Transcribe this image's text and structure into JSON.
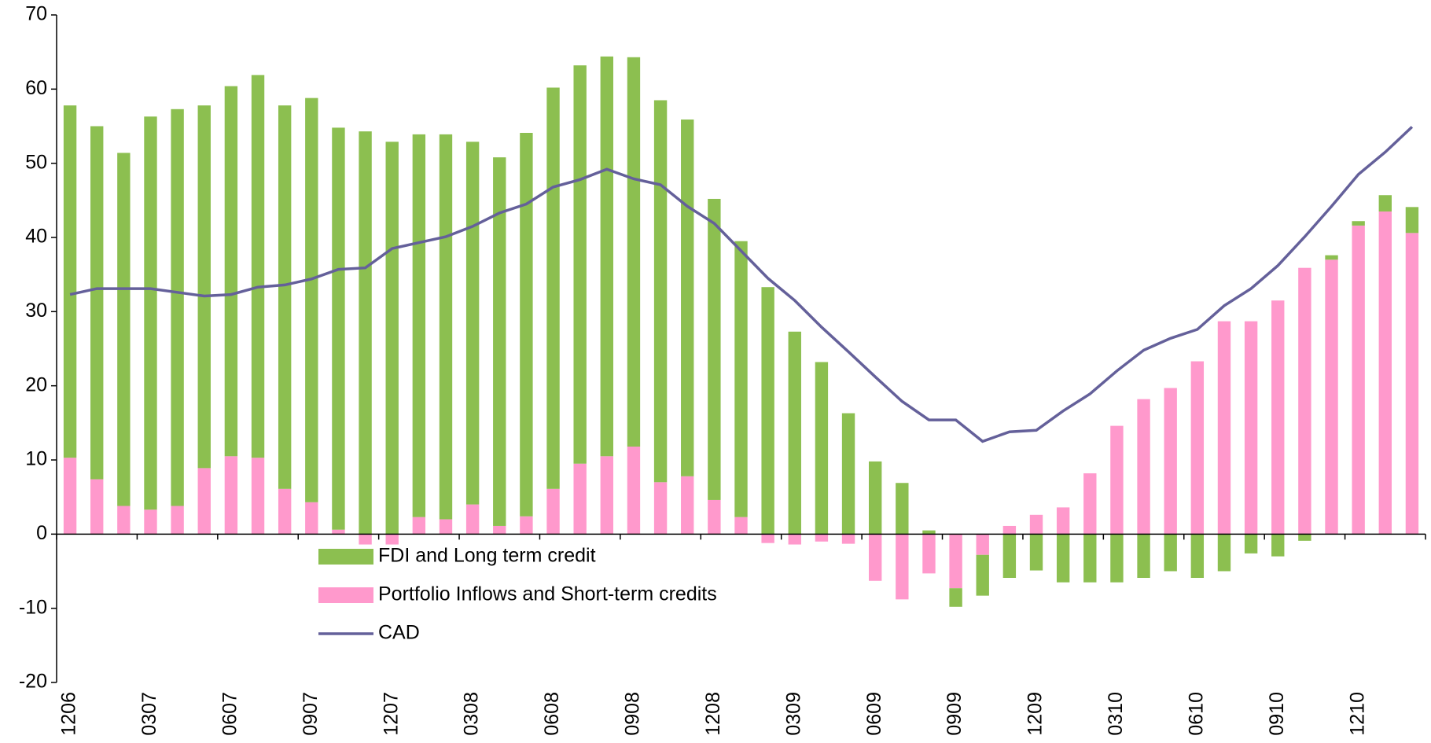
{
  "chart_data": {
    "type": "bar",
    "stacked": true,
    "categories": [
      "1206",
      null,
      null,
      "0307",
      null,
      null,
      "0607",
      null,
      null,
      "0907",
      null,
      null,
      "1207",
      null,
      null,
      "0308",
      null,
      null,
      "0608",
      null,
      null,
      "0908",
      null,
      null,
      "1208",
      null,
      null,
      "0309",
      null,
      null,
      "0609",
      null,
      null,
      "0909",
      null,
      null,
      "1209",
      null,
      null,
      "0310",
      null,
      null,
      "0610",
      null,
      null,
      "0910",
      null,
      null,
      "1210",
      null,
      null
    ],
    "series": [
      {
        "name": "FDI and Long term credit",
        "color": "#8cbf50",
        "type": "bar",
        "values": [
          47.5,
          47.6,
          47.6,
          53.0,
          53.5,
          48.9,
          49.9,
          51.6,
          51.7,
          54.5,
          54.2,
          54.3,
          52.9,
          51.6,
          51.9,
          48.9,
          49.7,
          51.7,
          54.1,
          53.7,
          53.9,
          52.5,
          51.5,
          48.1,
          40.6,
          37.2,
          33.3,
          27.3,
          23.2,
          16.3,
          9.8,
          6.9,
          0.5,
          -2.5,
          -5.5,
          -5.9,
          -4.9,
          -6.5,
          -6.5,
          -6.5,
          -5.9,
          -5.0,
          -5.9,
          -5.0,
          -2.6,
          -3.0,
          -0.9,
          0.6,
          0.6,
          2.2,
          3.5
        ]
      },
      {
        "name": "Portfolio Inflows and Short-term credits",
        "color": "#ff99cc",
        "type": "bar",
        "values": [
          10.3,
          7.4,
          3.8,
          3.3,
          3.8,
          8.9,
          10.5,
          10.3,
          6.1,
          4.3,
          0.6,
          -1.4,
          -1.4,
          2.3,
          2.0,
          4.0,
          1.1,
          2.4,
          6.1,
          9.5,
          10.5,
          11.8,
          7.0,
          7.8,
          4.6,
          2.3,
          -1.2,
          -1.4,
          -1.0,
          -1.3,
          -6.3,
          -8.8,
          -5.3,
          -7.3,
          -2.8,
          1.1,
          2.6,
          3.6,
          8.2,
          14.6,
          18.2,
          19.7,
          23.3,
          28.7,
          28.7,
          31.5,
          35.9,
          37.0,
          41.6,
          43.5,
          40.6
        ]
      },
      {
        "name": "CAD",
        "color": "#64609a",
        "type": "line",
        "values": [
          32.3,
          33.1,
          33.1,
          33.1,
          32.6,
          32.1,
          32.3,
          33.3,
          33.6,
          34.4,
          35.7,
          35.9,
          38.5,
          39.3,
          40.1,
          41.5,
          43.3,
          44.5,
          46.8,
          47.8,
          49.2,
          47.9,
          47.1,
          44.2,
          41.9,
          38.2,
          34.5,
          31.5,
          27.9,
          24.6,
          21.2,
          17.9,
          15.4,
          15.4,
          12.5,
          13.8,
          14.0,
          16.6,
          18.9,
          22.0,
          24.8,
          26.4,
          27.6,
          30.8,
          33.1,
          36.2,
          40.1,
          44.2,
          48.5,
          51.5,
          54.9
        ]
      }
    ],
    "ylim": [
      -20,
      70
    ],
    "yticks": [
      -20,
      -10,
      0,
      10,
      20,
      30,
      40,
      50,
      60,
      70
    ],
    "grid": false,
    "legend": "inside"
  }
}
